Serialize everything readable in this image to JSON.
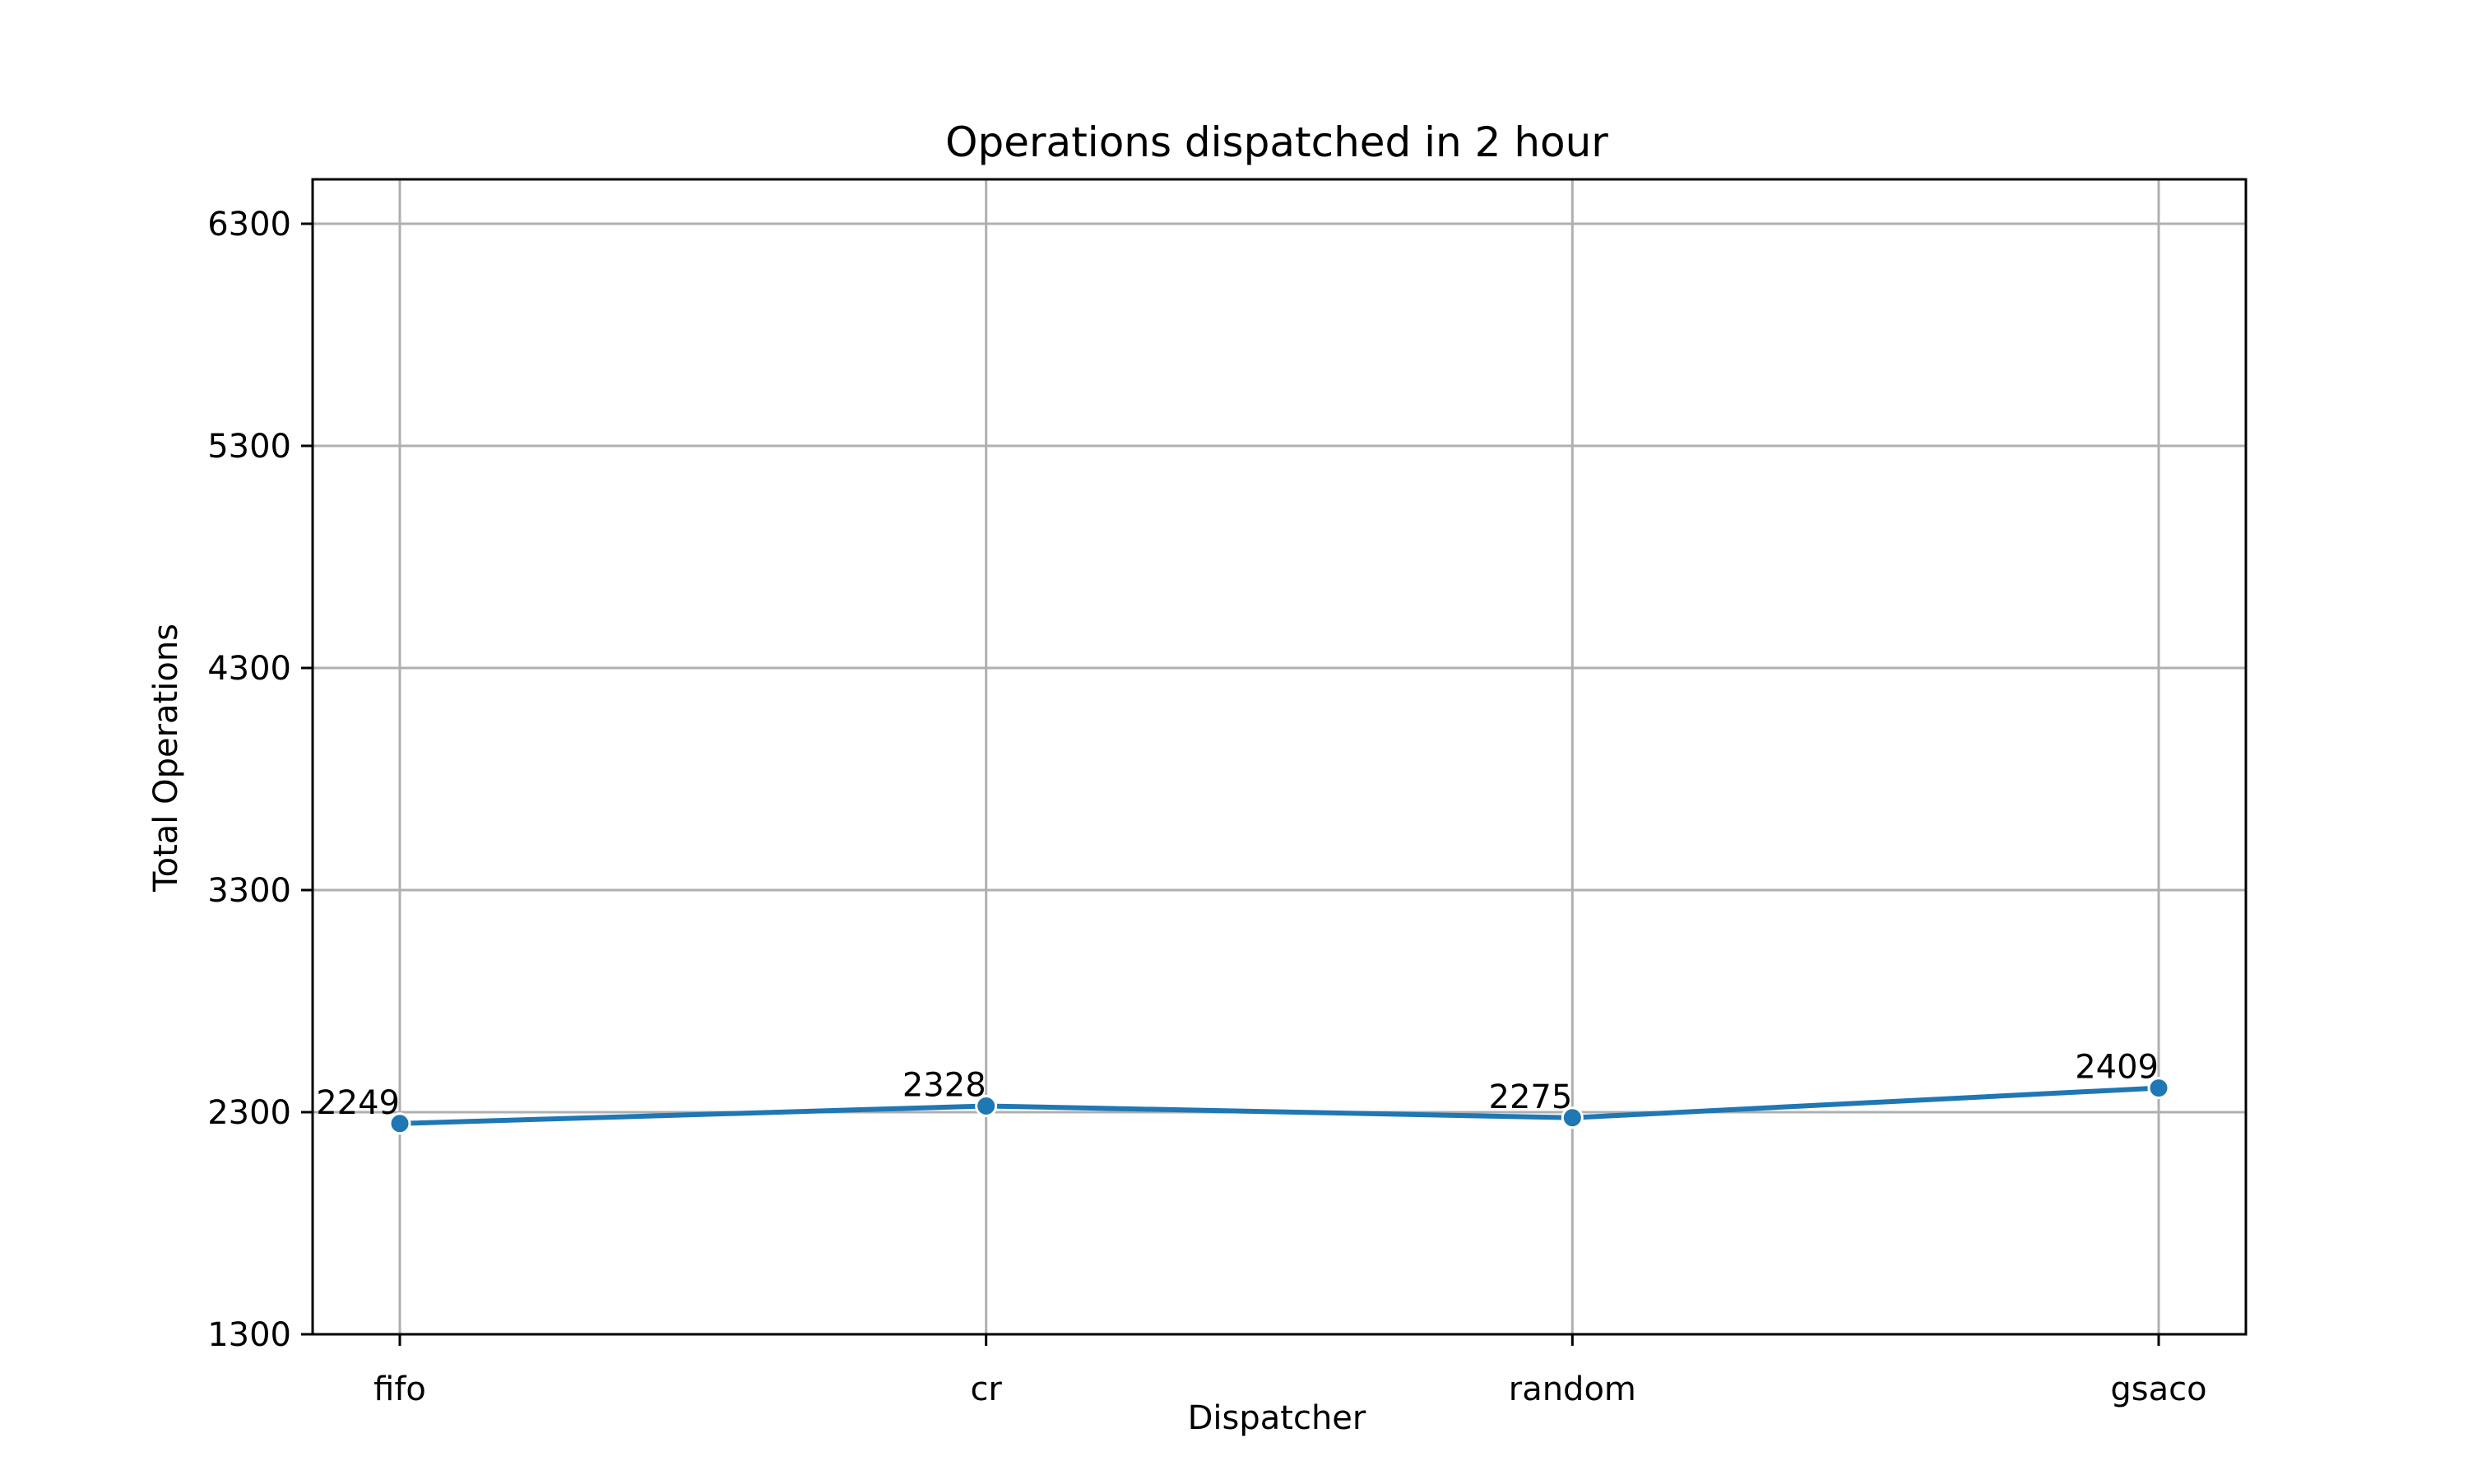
{
  "chart_data": {
    "type": "line",
    "title": "Operations dispatched in 2 hour",
    "xlabel": "Dispatcher",
    "ylabel": "Total Operations",
    "categories": [
      "fifo",
      "cr",
      "random",
      "gsaco"
    ],
    "series": [
      {
        "values": [
          2249,
          2328,
          2275,
          2409
        ],
        "color": "#1f77b4"
      }
    ],
    "ylim": [
      1300,
      6500
    ],
    "yticks": [
      1300,
      2300,
      3300,
      4300,
      5300,
      6300
    ],
    "grid": true,
    "legend": "none",
    "marker": "circle"
  }
}
